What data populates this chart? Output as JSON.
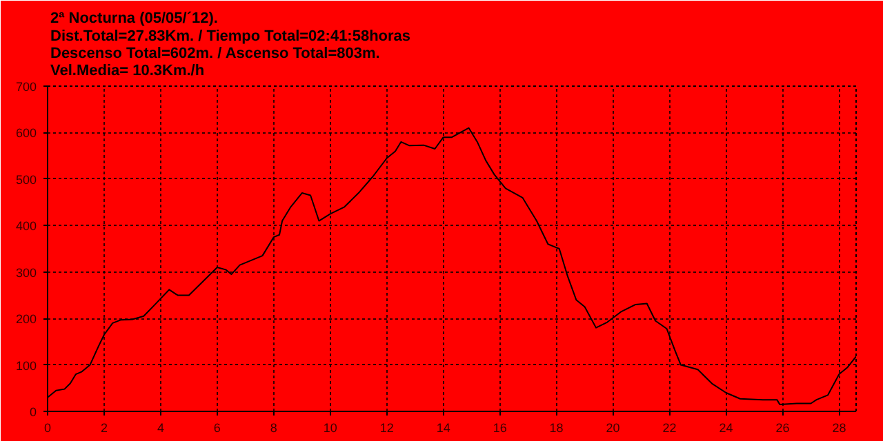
{
  "chart_data": {
    "type": "line",
    "title": "2ª Nocturna (05/05/´12).",
    "subtitle": "Dist.Total=27.83Km. / Tiempo Total=02:41:58horas\nDescenso Total=602m. / Ascenso Total=803m.\nVel.Media= 10.3Km./h",
    "x": [
      0,
      0.3,
      0.6,
      0.8,
      1.0,
      1.2,
      1.5,
      1.8,
      2.0,
      2.3,
      2.6,
      3.0,
      3.4,
      3.8,
      4.3,
      4.6,
      5.0,
      5.5,
      6.0,
      6.3,
      6.5,
      6.8,
      7.2,
      7.6,
      8.0,
      8.2,
      8.3,
      8.6,
      9.0,
      9.3,
      9.6,
      10.0,
      10.5,
      11.0,
      11.5,
      12.0,
      12.3,
      12.5,
      12.8,
      13.3,
      13.7,
      14.0,
      14.3,
      14.6,
      14.9,
      15.2,
      15.5,
      15.8,
      16.2,
      16.8,
      17.3,
      17.7,
      17.9,
      18.1,
      18.4,
      18.7,
      19.0,
      19.4,
      19.8,
      20.3,
      20.8,
      21.2,
      21.5,
      21.9,
      22.2,
      22.4,
      23.0,
      23.5,
      24.0,
      24.5,
      25.3,
      25.8,
      25.9,
      26.5,
      27.0,
      27.2,
      27.6,
      28.0,
      28.3,
      28.6
    ],
    "series": [
      {
        "color": "#000000",
        "values": [
          30,
          45,
          48,
          60,
          80,
          85,
          100,
          140,
          165,
          190,
          197,
          198,
          205,
          230,
          262,
          250,
          250,
          280,
          310,
          305,
          295,
          315,
          325,
          335,
          375,
          380,
          410,
          440,
          470,
          465,
          410,
          425,
          440,
          470,
          505,
          545,
          560,
          580,
          572,
          573,
          565,
          590,
          590,
          600,
          610,
          580,
          540,
          510,
          480,
          460,
          410,
          360,
          355,
          350,
          290,
          240,
          225,
          180,
          192,
          215,
          230,
          232,
          195,
          178,
          130,
          100,
          90,
          60,
          40,
          27,
          25,
          25,
          15,
          17,
          17,
          25,
          35,
          80,
          95,
          118
        ]
      }
    ],
    "xlim": [
      0,
      28.6
    ],
    "ylim": [
      0,
      700
    ],
    "xticks": [
      0,
      2,
      4,
      6,
      8,
      10,
      12,
      14,
      16,
      18,
      20,
      22,
      24,
      26,
      28
    ],
    "yticks": [
      0,
      100,
      200,
      300,
      400,
      500,
      600,
      700
    ],
    "grid": true,
    "line_style": "solid"
  }
}
